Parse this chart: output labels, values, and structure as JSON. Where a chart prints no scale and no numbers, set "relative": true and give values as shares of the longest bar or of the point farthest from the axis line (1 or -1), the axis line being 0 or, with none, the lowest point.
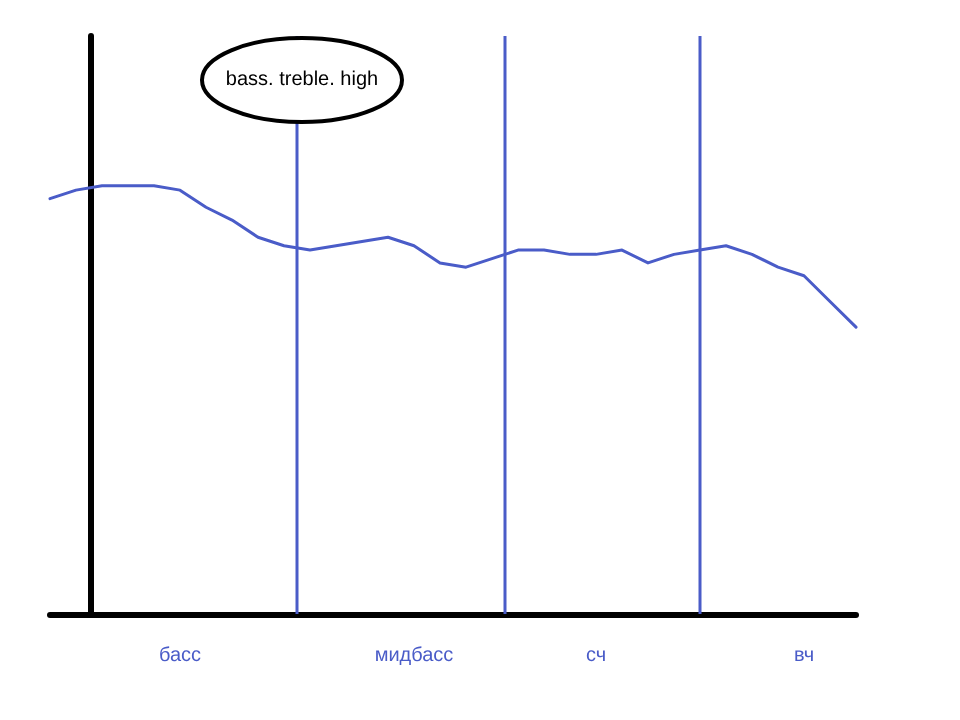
{
  "chart_data": {
    "type": "line",
    "relative": true,
    "tick_labels": "x",
    "marker": "none",
    "line_style": "solid",
    "categories": [
      null,
      null,
      null,
      null,
      null,
      "басс",
      null,
      null,
      null,
      null,
      null,
      null,
      null,
      null,
      "мидбасс",
      null,
      null,
      null,
      null,
      null,
      null,
      "сч",
      null,
      null,
      null,
      null,
      null,
      null,
      null,
      "вч",
      null,
      null
    ],
    "series": [
      {
        "color": "#4a5cc8",
        "values": [
          0.97,
          0.99,
          1,
          1,
          1,
          0.99,
          0.95,
          0.92,
          0.88,
          0.86,
          0.85,
          0.86,
          0.87,
          0.88,
          0.86,
          0.82,
          0.81,
          0.83,
          0.85,
          0.85,
          0.84,
          0.84,
          0.85,
          0.82,
          0.84,
          0.85,
          0.86,
          0.84,
          0.81,
          0.79,
          0.73,
          0.67
        ]
      }
    ],
    "grid": "x",
    "annotations": [
      "bass. treble. high"
    ]
  }
}
